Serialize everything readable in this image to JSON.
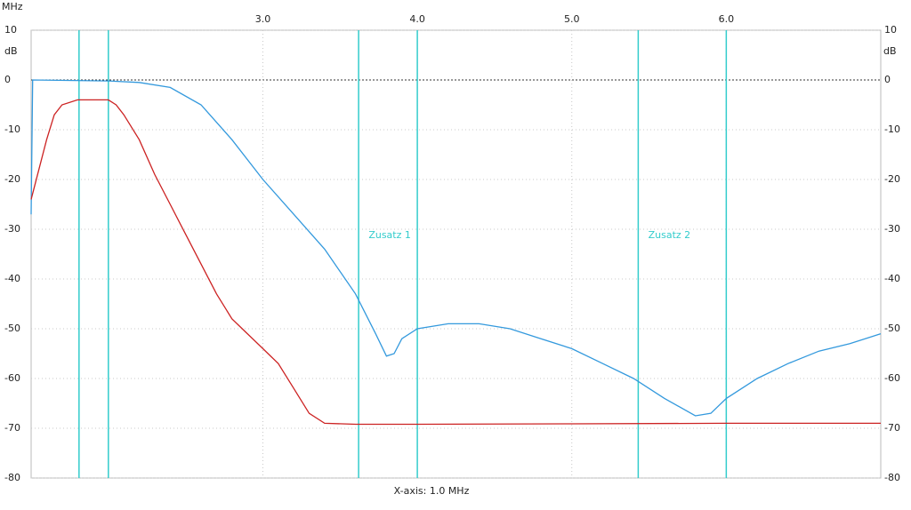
{
  "chart_data": {
    "type": "line",
    "x_unit": "MHz",
    "y_unit": "dB",
    "xlabel": "X-axis: 1.0 MHz",
    "xlim": [
      1.5,
      7.0
    ],
    "xticks": [
      {
        "value": 3,
        "label": "3.0"
      },
      {
        "value": 4,
        "label": "4.0"
      },
      {
        "value": 5,
        "label": "5.0"
      },
      {
        "value": 6,
        "label": "6.0"
      }
    ],
    "ylim": [
      -80,
      10
    ],
    "yticks": [
      10,
      0,
      -10,
      -20,
      -30,
      -40,
      -50,
      -60,
      -70,
      -80
    ],
    "grid": true,
    "markers": [
      {
        "x": 1.81
      },
      {
        "x": 2.0
      },
      {
        "x": 3.62,
        "label": "Zusatz 1"
      },
      {
        "x": 4.0
      },
      {
        "x": 5.43,
        "label": "Zusatz 2"
      },
      {
        "x": 6.0
      }
    ],
    "marker_color": "#33cccc",
    "series": [
      {
        "color": "#3399dd",
        "x": [
          1.5,
          1.51,
          2.0,
          2.2,
          2.4,
          2.6,
          2.8,
          3.0,
          3.2,
          3.4,
          3.6,
          3.73,
          3.8,
          3.85,
          3.9,
          4.0,
          4.2,
          4.4,
          4.6,
          4.8,
          5.0,
          5.2,
          5.4,
          5.6,
          5.8,
          5.9,
          6.0,
          6.2,
          6.4,
          6.6,
          6.8,
          7.0
        ],
        "values": [
          -27,
          0,
          -0.2,
          -0.5,
          -1.5,
          -5,
          -12,
          -20,
          -27,
          -34,
          -43,
          -51,
          -55.5,
          -55,
          -52,
          -50,
          -49,
          -49,
          -50,
          -52,
          -54,
          -57,
          -60,
          -64,
          -67.5,
          -67,
          -64,
          -60,
          -57,
          -54.5,
          -53,
          -51
        ]
      },
      {
        "color": "#cc2222",
        "x": [
          1.5,
          1.55,
          1.6,
          1.65,
          1.7,
          1.8,
          2.0,
          2.05,
          2.1,
          2.2,
          2.3,
          2.4,
          2.5,
          2.6,
          2.7,
          2.8,
          2.9,
          3.0,
          3.1,
          3.2,
          3.3,
          3.4,
          3.6,
          4.0,
          5.0,
          6.0,
          7.0
        ],
        "values": [
          -24,
          -18,
          -12,
          -7,
          -5,
          -4,
          -4,
          -5,
          -7,
          -12,
          -19,
          -25,
          -31,
          -37,
          -43,
          -48,
          -51,
          -54,
          -57,
          -62,
          -67,
          -69,
          -69.2,
          -69.2,
          -69.1,
          -69,
          -69
        ]
      }
    ]
  }
}
